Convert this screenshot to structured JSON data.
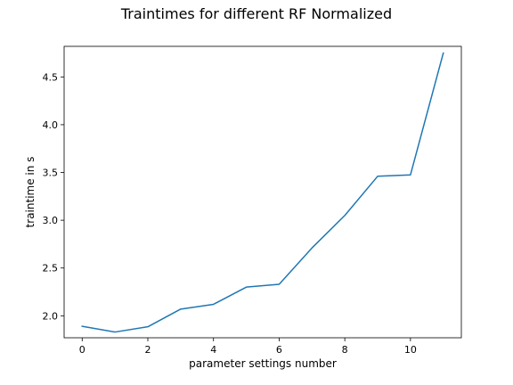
{
  "chart_data": {
    "type": "line",
    "title": "Traintimes for different RF Normalized",
    "xlabel": "parameter settings number",
    "ylabel": "traintime in s",
    "x": [
      0,
      1,
      2,
      3,
      4,
      5,
      6,
      7,
      8,
      9,
      10,
      11
    ],
    "series": [
      {
        "values": [
          1.89,
          1.83,
          1.885,
          2.07,
          2.12,
          2.3,
          2.33,
          2.71,
          3.05,
          3.46,
          3.475,
          4.75
        ],
        "color": "#1f77b4"
      }
    ],
    "xlim": [
      -0.55,
      11.55
    ],
    "ylim": [
      1.77,
      4.82
    ],
    "xticks": [
      0,
      2,
      4,
      6,
      8,
      10
    ],
    "xtick_labels": [
      "0",
      "2",
      "4",
      "6",
      "8",
      "10"
    ],
    "yticks": [
      2.0,
      2.5,
      3.0,
      3.5,
      4.0,
      4.5
    ],
    "ytick_labels": [
      "2.0",
      "2.5",
      "3.0",
      "3.5",
      "4.0",
      "4.5"
    ],
    "grid": false,
    "legend": false
  }
}
